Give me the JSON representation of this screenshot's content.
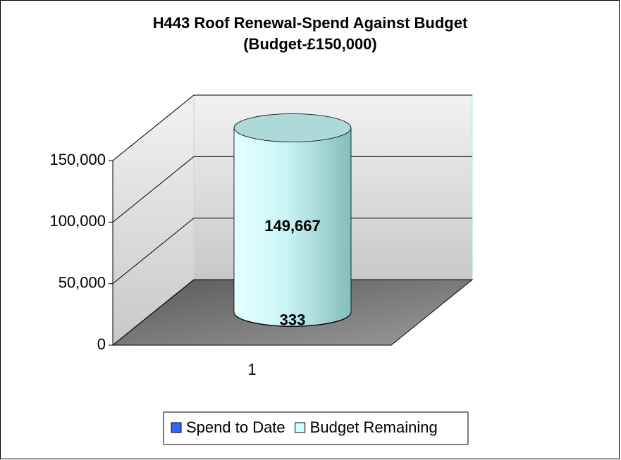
{
  "chart_data": {
    "type": "bar3d_cylinder_stacked",
    "title": "H443 Roof Renewal-Spend Against Budget",
    "subtitle": "(Budget-£150,000)",
    "categories": [
      "1"
    ],
    "series": [
      {
        "name": "Spend to Date",
        "color": "#3366ff",
        "values": [
          333
        ],
        "value_labels": [
          "333"
        ]
      },
      {
        "name": "Budget Remaining",
        "color": "#ccffff",
        "values": [
          149667
        ],
        "value_labels": [
          "149,667"
        ]
      }
    ],
    "ylim": [
      0,
      150000
    ],
    "yticks": [
      0,
      {
        "value": 50000,
        "label": "50,000"
      },
      {
        "value": 100000,
        "label": "100,000"
      },
      {
        "value": 150000,
        "label": "150,000"
      }
    ],
    "grid": true,
    "legend": "bottom"
  }
}
